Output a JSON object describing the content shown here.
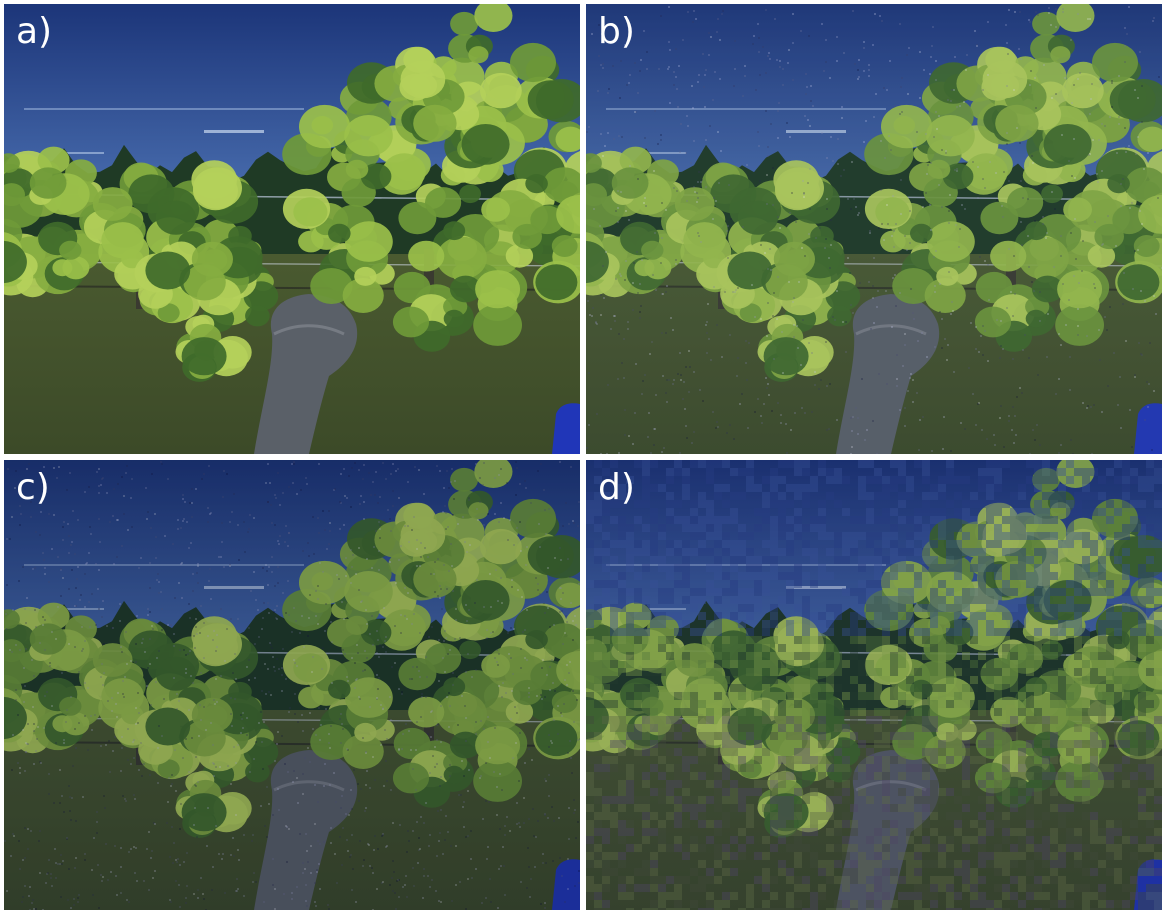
{
  "figure": {
    "panels": [
      {
        "id": "a",
        "label": "a)",
        "variant": "original"
      },
      {
        "id": "b",
        "label": "b)",
        "variant": "noise-light"
      },
      {
        "id": "c",
        "label": "c)",
        "variant": "noise-dark"
      },
      {
        "id": "d",
        "label": "d)",
        "variant": "pixelated-noise"
      }
    ]
  },
  "palette": {
    "sky_top": "#1c3579",
    "sky_bottom": "#4a6fb0",
    "tree_dark": "#1f3a25",
    "grass": "#5a6a38",
    "leaf_light": "#9bc04a",
    "leaf_mid": "#6f9a38",
    "leaf_dark": "#3f6a2a",
    "trunk": "#5a6068",
    "post": "#3a3a30",
    "blue_object": "#2036b8"
  }
}
